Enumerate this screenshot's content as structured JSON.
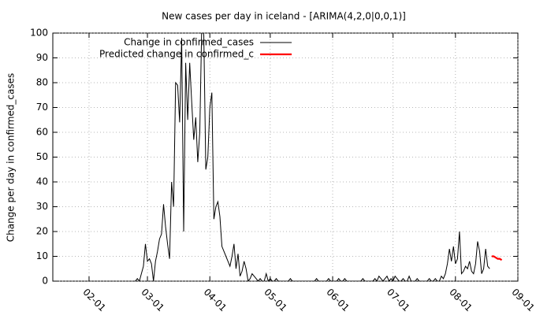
{
  "chart_data": {
    "type": "line",
    "title": "New cases per day in iceland -  [ARIMA(4,2,0|0,0,1)]",
    "y_label": "Change per day in confirmed_cases",
    "xlim": [
      "01-14",
      "09-01"
    ],
    "xticks": [
      "02-01",
      "03-01",
      "04-01",
      "05-01",
      "06-01",
      "07-01",
      "08-01",
      "09-01"
    ],
    "ylim": [
      0,
      100
    ],
    "yticks": [
      0,
      10,
      20,
      30,
      40,
      50,
      60,
      70,
      80,
      90,
      100
    ],
    "grid": true,
    "legend": "top left",
    "series": [
      {
        "name": "Change in confirmed_cases",
        "color": "#000000",
        "x": [
          "02-24",
          "02-25",
          "02-26",
          "02-27",
          "02-28",
          "02-29",
          "03-01",
          "03-02",
          "03-03",
          "03-04",
          "03-05",
          "03-06",
          "03-07",
          "03-08",
          "03-09",
          "03-10",
          "03-11",
          "03-12",
          "03-13",
          "03-14",
          "03-15",
          "03-16",
          "03-17",
          "03-18",
          "03-19",
          "03-20",
          "03-21",
          "03-22",
          "03-23",
          "03-24",
          "03-25",
          "03-26",
          "03-27",
          "03-28",
          "03-29",
          "03-30",
          "03-31",
          "04-01",
          "04-02",
          "04-03",
          "04-04",
          "04-05",
          "04-06",
          "04-07",
          "04-08",
          "04-09",
          "04-10",
          "04-11",
          "04-12",
          "04-13",
          "04-14",
          "04-15",
          "04-16",
          "04-17",
          "04-18",
          "04-19",
          "04-20",
          "04-21",
          "04-22",
          "04-23",
          "04-24",
          "04-25",
          "04-26",
          "04-27",
          "04-28",
          "04-29",
          "04-30",
          "05-01",
          "05-02",
          "05-03",
          "05-04",
          "05-05",
          "05-06",
          "05-07",
          "05-08",
          "05-09",
          "05-10",
          "05-11",
          "05-12",
          "05-13",
          "05-14",
          "05-15",
          "05-16",
          "05-17",
          "05-18",
          "05-19",
          "05-20",
          "05-21",
          "05-22",
          "05-23",
          "05-24",
          "05-25",
          "05-26",
          "05-27",
          "05-28",
          "05-29",
          "05-30",
          "05-31",
          "06-01",
          "06-02",
          "06-03",
          "06-04",
          "06-05",
          "06-06",
          "06-07",
          "06-08",
          "06-09",
          "06-10",
          "06-11",
          "06-12",
          "06-13",
          "06-14",
          "06-15",
          "06-16",
          "06-17",
          "06-18",
          "06-19",
          "06-20",
          "06-21",
          "06-22",
          "06-23",
          "06-24",
          "06-25",
          "06-26",
          "06-27",
          "06-28",
          "06-29",
          "06-30",
          "07-01",
          "07-02",
          "07-03",
          "07-04",
          "07-05",
          "07-06",
          "07-07",
          "07-08",
          "07-09",
          "07-10",
          "07-11",
          "07-12",
          "07-13",
          "07-14",
          "07-15",
          "07-16",
          "07-17",
          "07-18",
          "07-19",
          "07-20",
          "07-21",
          "07-22",
          "07-23",
          "07-24",
          "07-25",
          "07-26",
          "07-27",
          "07-28",
          "07-29",
          "07-30",
          "07-31",
          "08-01",
          "08-02",
          "08-03",
          "08-04",
          "08-05",
          "08-06",
          "08-07",
          "08-08",
          "08-09",
          "08-10",
          "08-11",
          "08-12",
          "08-13",
          "08-14",
          "08-15",
          "08-16",
          "08-17",
          "08-18"
        ],
        "values": [
          0,
          1,
          0,
          3,
          6,
          15,
          8,
          9,
          7,
          0,
          8,
          12,
          17,
          19,
          31,
          22,
          15,
          9,
          40,
          30,
          80,
          79,
          64,
          98,
          20,
          88,
          65,
          88,
          72,
          57,
          66,
          48,
          60,
          104,
          99,
          45,
          50,
          70,
          76,
          25,
          30,
          32,
          26,
          14,
          12,
          10,
          8,
          6,
          10,
          15,
          5,
          11,
          2,
          4,
          8,
          5,
          0,
          1,
          3,
          2,
          1,
          0,
          1,
          0,
          0,
          3,
          0,
          1,
          0,
          0,
          1,
          0,
          0,
          0,
          0,
          0,
          0,
          1,
          0,
          0,
          0,
          0,
          0,
          0,
          0,
          0,
          0,
          0,
          0,
          0,
          1,
          0,
          0,
          0,
          0,
          0,
          1,
          0,
          0,
          0,
          0,
          1,
          0,
          0,
          1,
          0,
          0,
          0,
          0,
          0,
          0,
          0,
          0,
          1,
          0,
          0,
          0,
          0,
          0,
          1,
          0,
          2,
          1,
          0,
          1,
          2,
          0,
          1,
          0,
          2,
          1,
          0,
          0,
          1,
          0,
          0,
          2,
          0,
          0,
          0,
          1,
          0,
          0,
          0,
          0,
          0,
          1,
          0,
          0,
          1,
          0,
          0,
          2,
          1,
          3,
          7,
          13,
          8,
          14,
          7,
          9,
          20,
          3,
          4,
          6,
          5,
          8,
          4,
          3,
          7,
          16,
          12,
          3,
          5,
          13,
          6,
          5
        ]
      },
      {
        "name": "Predicted change in confirmed_c",
        "color": "#ff0000",
        "x": [
          "08-19",
          "08-20",
          "08-21",
          "08-22",
          "08-23",
          "08-24"
        ],
        "values": [
          10,
          10,
          9.5,
          9,
          9,
          8.5
        ]
      }
    ]
  }
}
